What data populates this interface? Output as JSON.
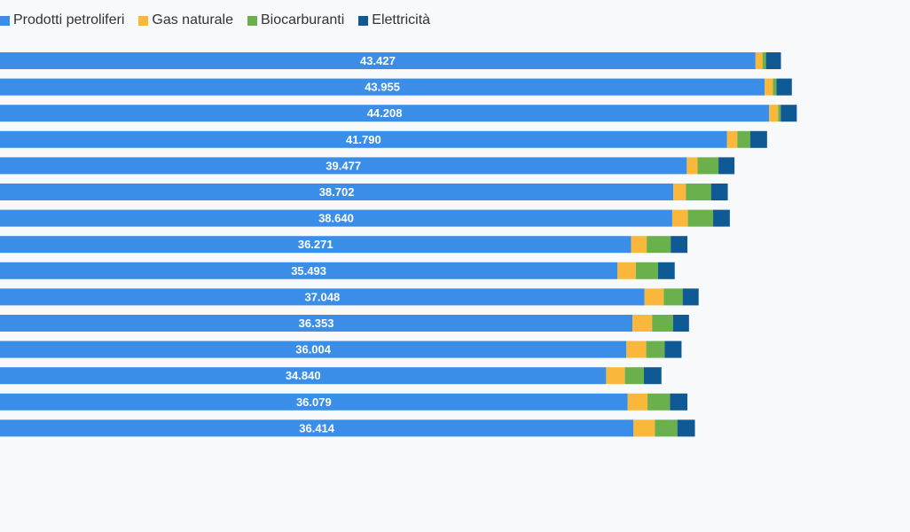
{
  "chart_data": {
    "type": "bar",
    "orientation": "horizontal",
    "stacked": true,
    "legend_position": "top-left",
    "grid": false,
    "xlim": [
      0,
      52000
    ],
    "series": [
      {
        "name": "Prodotti petroliferi",
        "color": "#3a8ee8",
        "values": [
          43427,
          43955,
          44208,
          41790,
          39477,
          38702,
          38640,
          36271,
          35493,
          37048,
          36353,
          36004,
          34840,
          36079,
          36414
        ],
        "labels": [
          "43.427",
          "43.955",
          "44.208",
          "41.790",
          "39.477",
          "38.702",
          "38.640",
          "36.271",
          "35.493",
          "37.048",
          "36.353",
          "36.004",
          "34.840",
          "36.079",
          "36.414"
        ]
      },
      {
        "name": "Gas naturale",
        "color": "#f9b73c",
        "values": [
          400,
          470,
          520,
          590,
          620,
          720,
          900,
          900,
          1050,
          1100,
          1130,
          1140,
          1080,
          1140,
          1230
        ]
      },
      {
        "name": "Biocarburanti",
        "color": "#6ab04c",
        "values": [
          200,
          210,
          150,
          740,
          1200,
          1450,
          1450,
          1380,
          1280,
          1090,
          1200,
          1060,
          1090,
          1290,
          1290
        ]
      },
      {
        "name": "Elettricità",
        "color": "#0f5994",
        "values": [
          860,
          880,
          920,
          970,
          920,
          960,
          960,
          960,
          960,
          920,
          920,
          970,
          1010,
          1000,
          1010
        ]
      }
    ]
  }
}
